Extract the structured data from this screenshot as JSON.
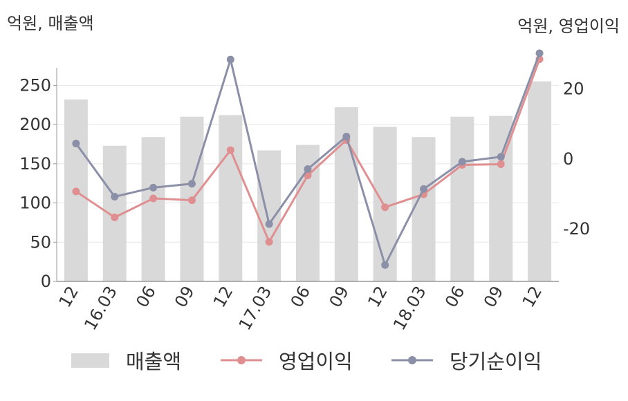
{
  "units": {
    "left": "억원, 매출액",
    "right": "억원, 영업이익"
  },
  "legend": {
    "sales": "매출액",
    "op": "영업이익",
    "net": "당기순이익"
  },
  "colors": {
    "bar": "#d9d9d9",
    "op": "#e08f91",
    "net": "#8b90a8",
    "axis": "#999999",
    "grid": "#e5e5e5",
    "text": "#333333"
  },
  "chart_data": {
    "type": "bar+line",
    "categories": [
      "12",
      "16.03",
      "06",
      "09",
      "12",
      "17.03",
      "06",
      "09",
      "12",
      "18.03",
      "06",
      "09",
      "12"
    ],
    "left_axis": {
      "ylim": [
        0,
        290
      ],
      "ticks": [
        0,
        50,
        100,
        150,
        200,
        250
      ]
    },
    "right_axis": {
      "ylim": [
        -35,
        30
      ],
      "ticks": [
        -20,
        0,
        20
      ]
    },
    "series": [
      {
        "name": "매출액",
        "type": "bar",
        "axis": "left",
        "values": [
          232,
          173,
          184,
          210,
          212,
          167,
          174,
          222,
          197,
          184,
          210,
          211,
          255
        ]
      },
      {
        "name": "영업이익",
        "type": "line",
        "axis": "right",
        "values": [
          -9.3,
          -16.7,
          -11.3,
          -11.8,
          2.5,
          -23.7,
          -4.7,
          5.4,
          -13.8,
          -10.1,
          -1.7,
          -1.5,
          28.5
        ]
      },
      {
        "name": "당기순이익",
        "type": "line",
        "axis": "right",
        "values": [
          4.4,
          -10.8,
          -8.2,
          -7.1,
          28.4,
          -18.6,
          -2.9,
          6.4,
          -30.3,
          -8.6,
          -0.8,
          0.6,
          30.2
        ]
      }
    ]
  }
}
